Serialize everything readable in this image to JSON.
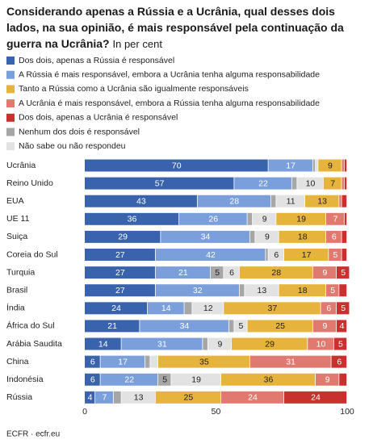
{
  "chart_data": {
    "type": "stacked-bar-horizontal",
    "title": "Considerando apenas a Rússia e a Ucrânia, qual desses dois lados, na sua opinião, é mais responsável pela continuação da guerra na Ucrânia?",
    "subtitle": "In per cent",
    "source": "ECFR · ecfr.eu",
    "categories": [
      "Ucrânia",
      "Reino Unido",
      "EUA",
      "UE 11",
      "Suiça",
      "Coreia do Sul",
      "Turquia",
      "Brasil",
      "Índia",
      "África do Sul",
      "Arábia Saudita",
      "China",
      "Indonésia",
      "Rússia"
    ],
    "series": [
      {
        "name": "Dos dois, apenas a Rússia é responsável",
        "color": "#3a63ae",
        "label_color": "#ffffff",
        "values": [
          70,
          57,
          43,
          36,
          29,
          27,
          27,
          27,
          24,
          21,
          14,
          6,
          6,
          4
        ]
      },
      {
        "name": "A Rússia é mais responsável, embora a Ucrânia tenha alguma responsabilidade",
        "color": "#7b9fda",
        "label_color": "#ffffff",
        "values": [
          17,
          22,
          28,
          26,
          34,
          42,
          21,
          32,
          14,
          34,
          31,
          17,
          22,
          7
        ]
      },
      {
        "name": "Nenhum dos dois é responsável",
        "color": "#a6a6a6",
        "label_color": "#222222",
        "values": [
          1,
          2,
          2,
          2,
          2,
          1,
          5,
          2,
          3,
          2,
          2,
          2,
          5,
          3
        ]
      },
      {
        "name": "Não sabe ou não respondeu",
        "color": "#e2e2e2",
        "label_color": "#222222",
        "values": [
          1,
          10,
          11,
          9,
          9,
          6,
          6,
          13,
          12,
          5,
          9,
          3,
          19,
          13
        ]
      },
      {
        "name": "Tanto a Rússia como a Ucrânia são igualmente responsáveis",
        "color": "#e6b33c",
        "label_color": "#222222",
        "values": [
          9,
          7,
          13,
          19,
          18,
          17,
          28,
          18,
          37,
          25,
          29,
          35,
          36,
          25
        ]
      },
      {
        "name": "A Ucrânia é mais responsável, embora a Rússia tenha alguma responsabilidade",
        "color": "#e07a70",
        "label_color": "#ffffff",
        "values": [
          1,
          1,
          1,
          7,
          6,
          5,
          9,
          5,
          6,
          9,
          10,
          31,
          9,
          24
        ]
      },
      {
        "name": "Dos dois, apenas a Ucrânia é responsável",
        "color": "#c8312d",
        "label_color": "#ffffff",
        "values": [
          1,
          1,
          2,
          1,
          2,
          2,
          5,
          3,
          5,
          4,
          5,
          6,
          3,
          24
        ]
      }
    ],
    "legend_order": [
      0,
      1,
      4,
      5,
      6,
      2,
      3
    ],
    "xlim": [
      0,
      100
    ],
    "xticks": [
      0,
      50,
      100
    ],
    "grid": false
  }
}
